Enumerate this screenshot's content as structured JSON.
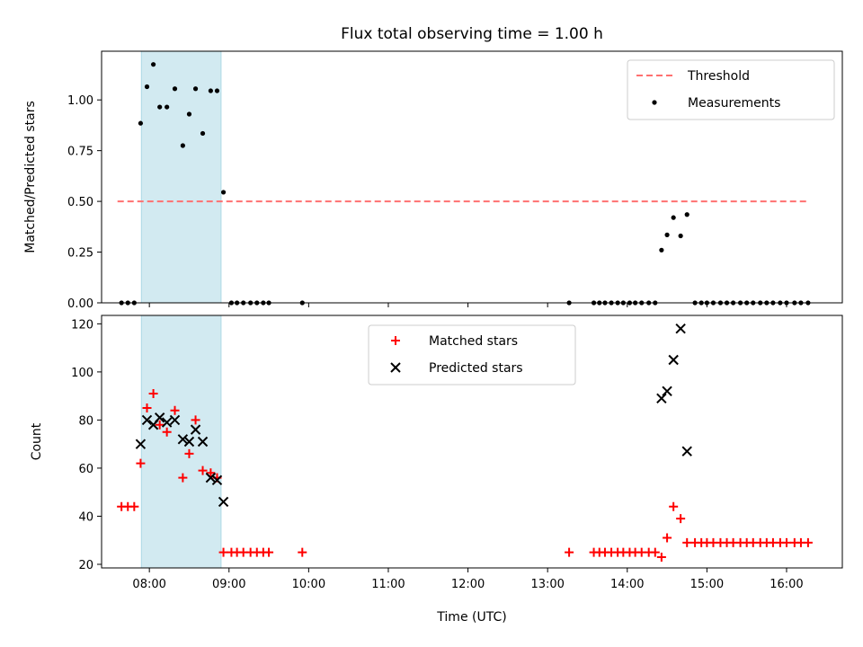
{
  "chart_data": {
    "type": "scatter",
    "title": "Flux total observing time = 1.00 h",
    "xlabel": "Time (UTC)",
    "x_unit": "hours UTC",
    "xlim": [
      7.4,
      16.7
    ],
    "x_ticks": [
      {
        "value": 8,
        "label": "08:00"
      },
      {
        "value": 9,
        "label": "09:00"
      },
      {
        "value": 10,
        "label": "10:00"
      },
      {
        "value": 11,
        "label": "11:00"
      },
      {
        "value": 12,
        "label": "12:00"
      },
      {
        "value": 13,
        "label": "13:00"
      },
      {
        "value": 14,
        "label": "14:00"
      },
      {
        "value": 15,
        "label": "15:00"
      },
      {
        "value": 16,
        "label": "16:00"
      }
    ],
    "highlight_span": {
      "x0": 7.9,
      "x1": 8.9,
      "color": "#add8e6"
    },
    "panels": [
      {
        "name": "ratio",
        "ylabel": "Matched/Predicted stars",
        "ylim": [
          0,
          1.24
        ],
        "y_ticks": [
          {
            "value": 0,
            "label": "0.00"
          },
          {
            "value": 0.25,
            "label": "0.25"
          },
          {
            "value": 0.5,
            "label": "0.50"
          },
          {
            "value": 0.75,
            "label": "0.75"
          },
          {
            "value": 1.0,
            "label": "1.00"
          }
        ],
        "threshold": {
          "name": "Threshold",
          "value": 0.5,
          "x_range": [
            7.6,
            16.25
          ],
          "color": "#ff7070"
        },
        "series": [
          {
            "name": "Measurements",
            "marker": "dot",
            "color": "#000000",
            "x": [
              7.65,
              7.73,
              7.81,
              7.89,
              7.97,
              8.05,
              8.13,
              8.22,
              8.32,
              8.42,
              8.5,
              8.58,
              8.67,
              8.77,
              8.85,
              8.93,
              9.03,
              9.1,
              9.18,
              9.27,
              9.35,
              9.43,
              9.5,
              9.92,
              13.27,
              13.58,
              13.65,
              13.72,
              13.8,
              13.88,
              13.95,
              14.03,
              14.1,
              14.18,
              14.27,
              14.35,
              14.43,
              14.5,
              14.58,
              14.67,
              14.75,
              14.85,
              14.93,
              15.0,
              15.08,
              15.17,
              15.25,
              15.33,
              15.42,
              15.5,
              15.58,
              15.67,
              15.75,
              15.83,
              15.92,
              16.0,
              16.1,
              16.18,
              16.27
            ],
            "y": [
              0,
              0,
              0,
              0.885,
              1.065,
              1.175,
              0.965,
              0.965,
              1.055,
              0.775,
              0.93,
              1.055,
              0.835,
              1.045,
              1.045,
              0.545,
              0,
              0,
              0,
              0,
              0,
              0,
              0,
              0,
              0,
              0,
              0,
              0,
              0,
              0,
              0,
              0,
              0,
              0,
              0,
              0,
              0.26,
              0.335,
              0.42,
              0.33,
              0.435,
              0,
              0,
              0,
              0,
              0,
              0,
              0,
              0,
              0,
              0,
              0,
              0,
              0,
              0,
              0,
              0,
              0,
              0
            ]
          }
        ]
      },
      {
        "name": "counts",
        "ylabel": "Count",
        "ylim": [
          18.5,
          123.5
        ],
        "y_ticks": [
          {
            "value": 20,
            "label": "20"
          },
          {
            "value": 40,
            "label": "40"
          },
          {
            "value": 60,
            "label": "60"
          },
          {
            "value": 80,
            "label": "80"
          },
          {
            "value": 100,
            "label": "100"
          },
          {
            "value": 120,
            "label": "120"
          }
        ],
        "series": [
          {
            "name": "Matched stars",
            "marker": "plus",
            "color": "#ff0000",
            "x": [
              7.65,
              7.73,
              7.81,
              7.89,
              7.97,
              8.05,
              8.13,
              8.22,
              8.32,
              8.42,
              8.5,
              8.58,
              8.67,
              8.77,
              8.85,
              8.93,
              9.03,
              9.1,
              9.18,
              9.27,
              9.35,
              9.43,
              9.5,
              9.92,
              13.27,
              13.58,
              13.65,
              13.72,
              13.8,
              13.88,
              13.95,
              14.03,
              14.1,
              14.18,
              14.27,
              14.35,
              14.43,
              14.5,
              14.58,
              14.67,
              14.75,
              14.85,
              14.93,
              15.0,
              15.08,
              15.17,
              15.25,
              15.33,
              15.42,
              15.5,
              15.58,
              15.67,
              15.75,
              15.83,
              15.92,
              16.0,
              16.1,
              16.18,
              16.27
            ],
            "y": [
              44,
              44,
              44,
              62,
              85,
              91,
              78,
              75,
              84,
              56,
              66,
              80,
              59,
              58,
              56,
              25,
              25,
              25,
              25,
              25,
              25,
              25,
              25,
              25,
              25,
              25,
              25,
              25,
              25,
              25,
              25,
              25,
              25,
              25,
              25,
              25,
              23,
              31,
              44,
              39,
              29,
              29,
              29,
              29,
              29,
              29,
              29,
              29,
              29,
              29,
              29,
              29,
              29,
              29,
              29,
              29,
              29,
              29,
              29
            ]
          },
          {
            "name": "Predicted stars",
            "marker": "x",
            "color": "#000000",
            "x": [
              7.89,
              7.97,
              8.05,
              8.13,
              8.22,
              8.32,
              8.42,
              8.5,
              8.58,
              8.67,
              8.77,
              8.85,
              8.93,
              14.43,
              14.5,
              14.58,
              14.67,
              14.75
            ],
            "y": [
              70,
              80,
              78,
              81,
              79,
              80,
              72,
              71,
              76,
              71,
              56,
              55,
              46,
              89,
              92,
              105,
              118,
              67
            ]
          }
        ]
      }
    ]
  }
}
